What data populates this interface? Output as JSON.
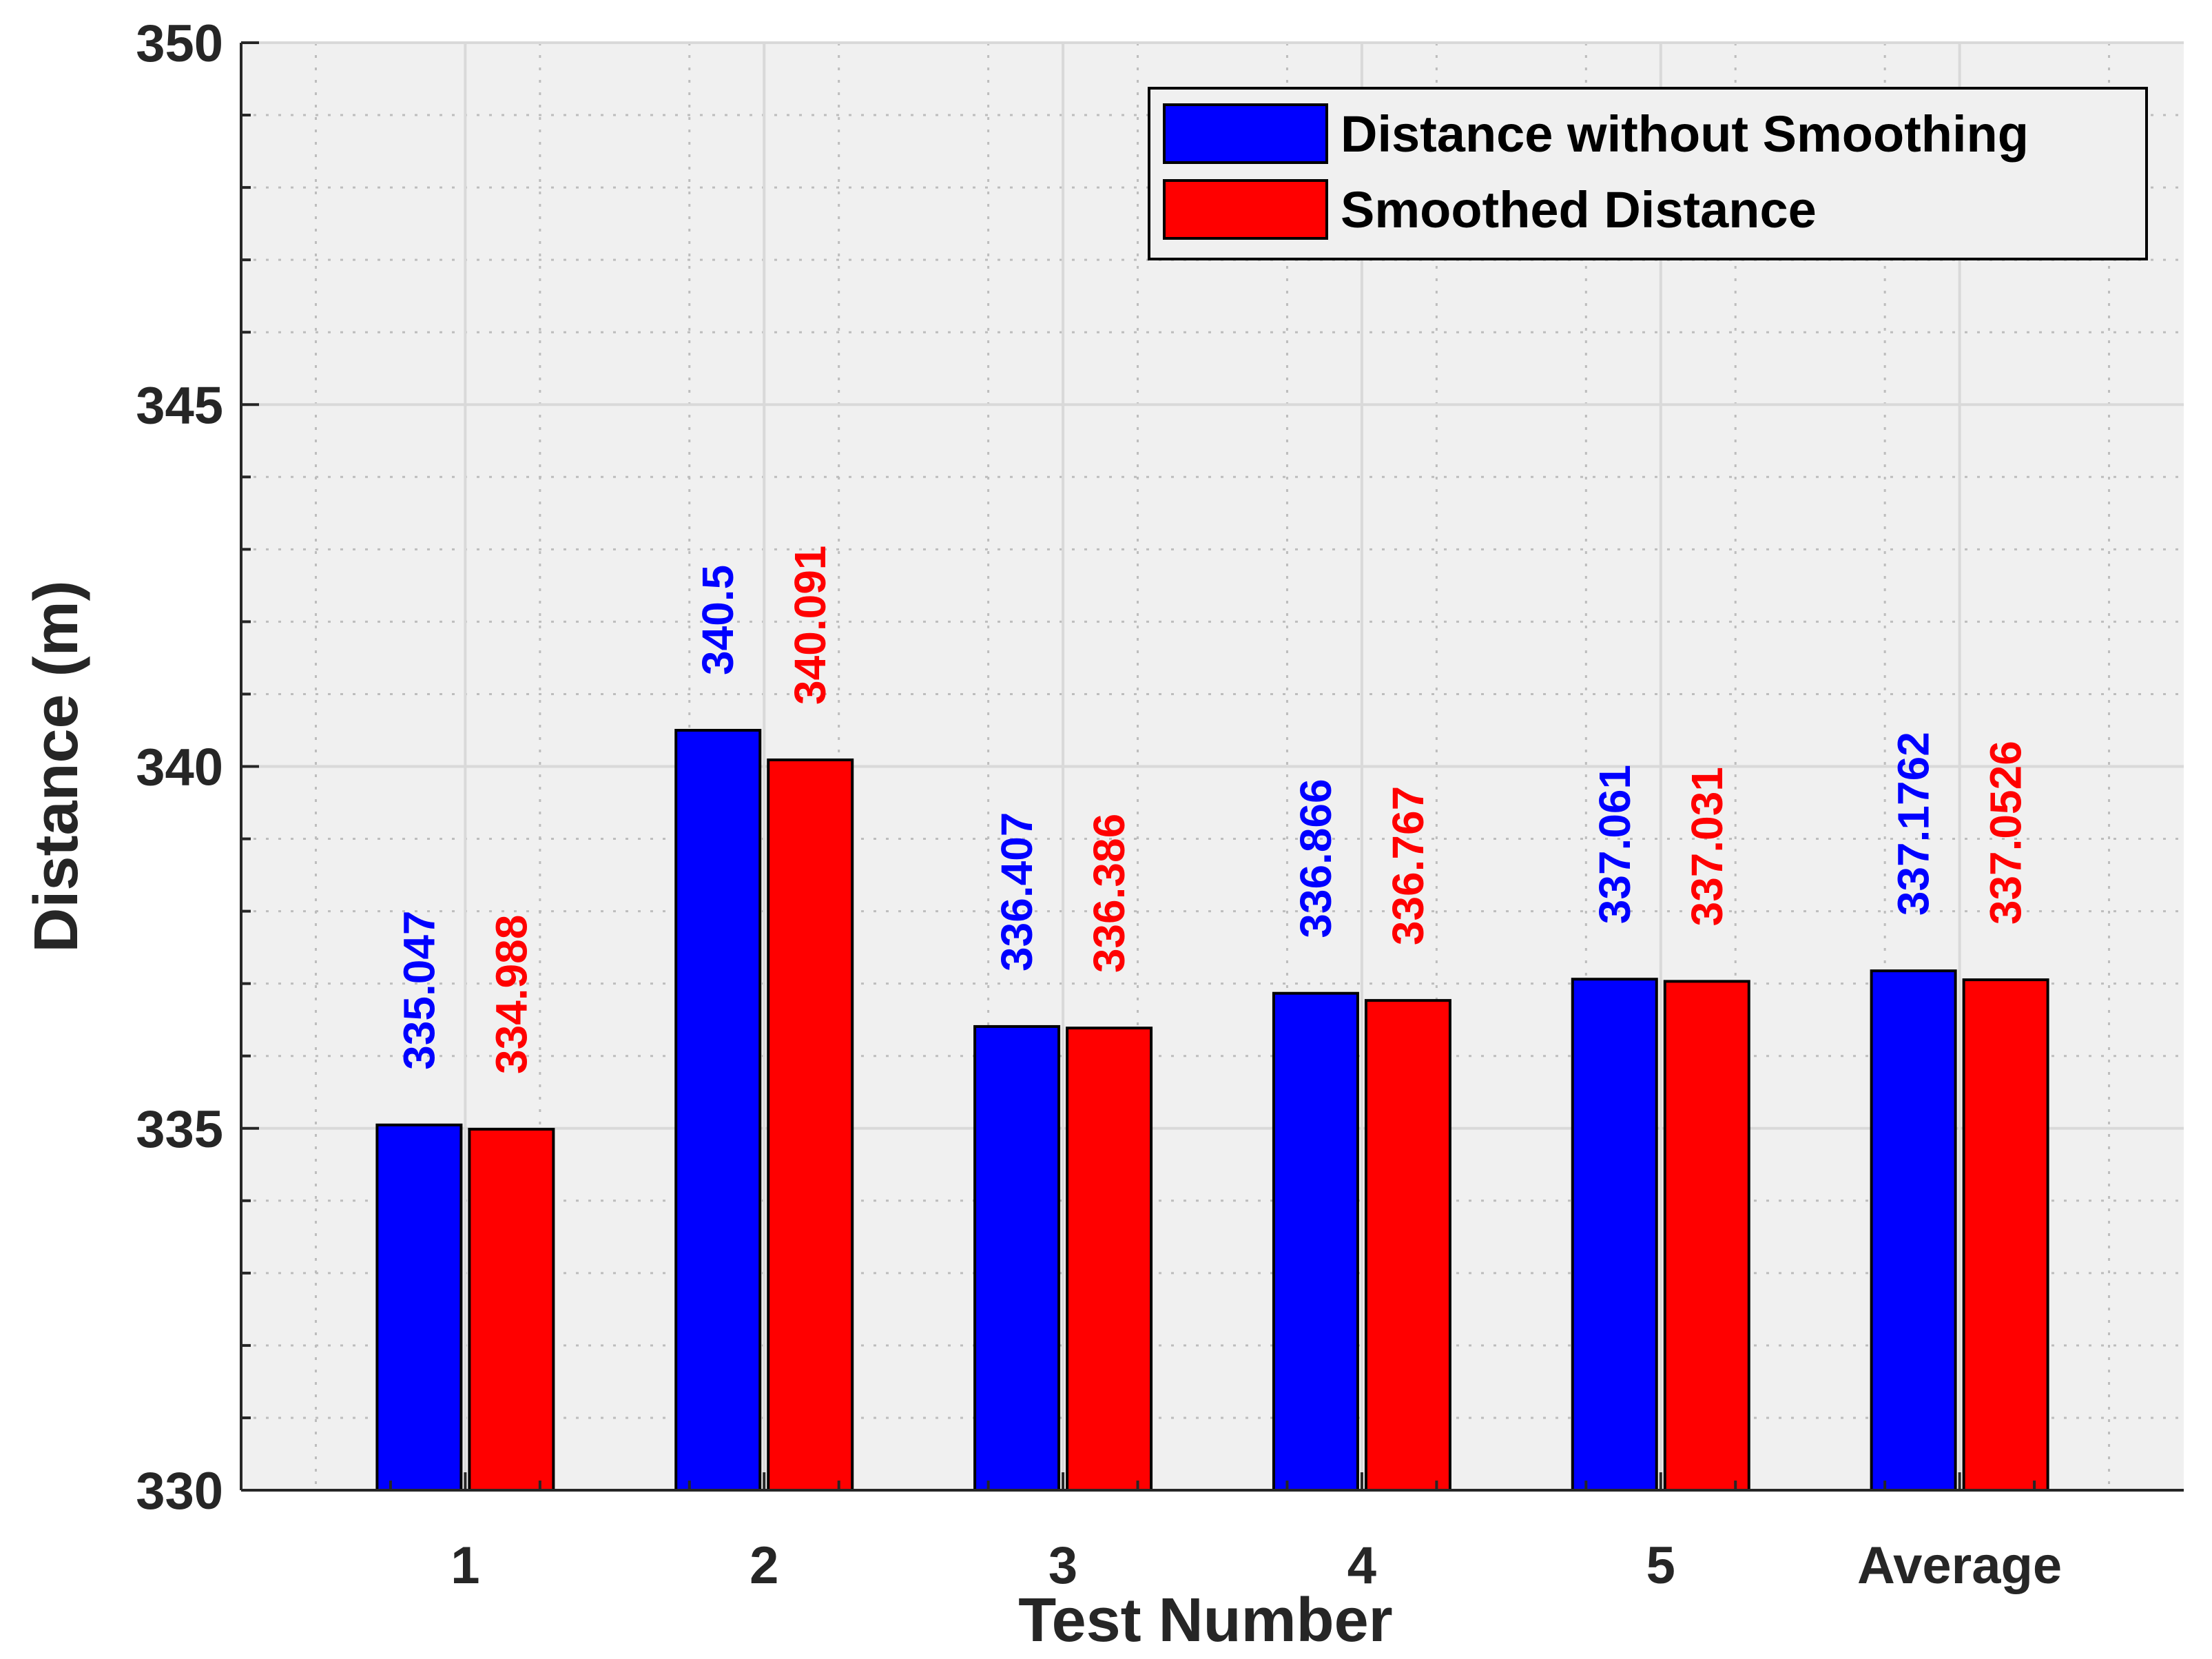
{
  "chart_data": {
    "type": "bar",
    "title": "",
    "xlabel": "Test Number",
    "ylabel": "Distance (m)",
    "categories": [
      "1",
      "2",
      "3",
      "4",
      "5",
      "Average"
    ],
    "series": [
      {
        "name": "Distance without Smoothing",
        "color": "#0000ff",
        "values": [
          335.047,
          340.5,
          336.407,
          336.866,
          337.061,
          337.1762
        ],
        "labels": [
          "335.047",
          "340.5",
          "336.407",
          "336.866",
          "337.061",
          "337.1762"
        ]
      },
      {
        "name": "Smoothed Distance",
        "color": "#ff0000",
        "values": [
          334.988,
          340.091,
          336.386,
          336.767,
          337.031,
          337.0526
        ],
        "labels": [
          "334.988",
          "340.091",
          "336.386",
          "336.767",
          "337.031",
          "337.0526"
        ]
      }
    ],
    "ylim": [
      330,
      350
    ],
    "yticks": [
      330,
      335,
      340,
      345,
      350
    ],
    "yminor_step": 1,
    "grid": true,
    "legend_position": "top-right"
  }
}
